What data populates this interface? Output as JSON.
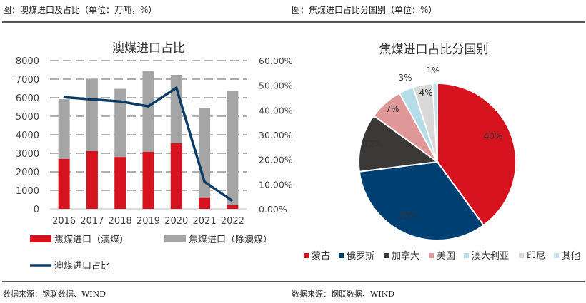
{
  "headers": {
    "left": "图：澳煤进口及占比（单位：万吨，%）",
    "right": "图：焦煤进口占比分国别（单位：%）"
  },
  "footers": {
    "left": "数据来源：钢联数据、WIND",
    "right": "数据来源：钢联数据、WIND"
  },
  "chart_data": [
    {
      "type": "bar",
      "title": "澳煤进口占比",
      "categories": [
        "2016",
        "2017",
        "2018",
        "2019",
        "2020",
        "2021",
        "2022"
      ],
      "y_ticks": [
        "0",
        "1000",
        "2000",
        "3000",
        "4000",
        "5000",
        "6000",
        "7000",
        "8000"
      ],
      "y2_ticks": [
        "0.00%",
        "10.00%",
        "20.00%",
        "30.00%",
        "40.00%",
        "50.00%",
        "60.00%"
      ],
      "ylim": [
        0,
        8000
      ],
      "y2lim": [
        0,
        60
      ],
      "series": [
        {
          "name": "焦煤进口（澳煤）",
          "kind": "stacked-bar",
          "color": "#d7121f",
          "values": [
            2700,
            3120,
            2800,
            3080,
            3540,
            590,
            200
          ]
        },
        {
          "name": "焦煤进口（除澳煤）",
          "kind": "stacked-bar",
          "color": "#a5a5a5",
          "values": [
            3220,
            3900,
            3680,
            4370,
            3690,
            4870,
            6160
          ]
        },
        {
          "name": "澳煤进口占比",
          "kind": "line",
          "axis": "right",
          "color": "#0b3c66",
          "values": [
            45.2,
            44.3,
            43.5,
            41.5,
            49.0,
            11.0,
            3.2
          ]
        }
      ],
      "grid": "dashed horizontal",
      "legend": "bottom"
    },
    {
      "type": "pie",
      "title": "焦煤进口占比分国别",
      "labels": [
        "蒙古",
        "俄罗斯",
        "加拿大",
        "美国",
        "澳大利亚",
        "印尼",
        "其他"
      ],
      "values": [
        40,
        33,
        12,
        7,
        3,
        4,
        1
      ],
      "data_labels": [
        "40%",
        "33%",
        "12%",
        "7%",
        "3%",
        "4%",
        "1%"
      ],
      "colors": [
        "#d7121f",
        "#003f72",
        "#3b3838",
        "#df9797",
        "#b4dde8",
        "#d9d9d9",
        "#c6e2ec"
      ],
      "legend": "bottom"
    }
  ]
}
